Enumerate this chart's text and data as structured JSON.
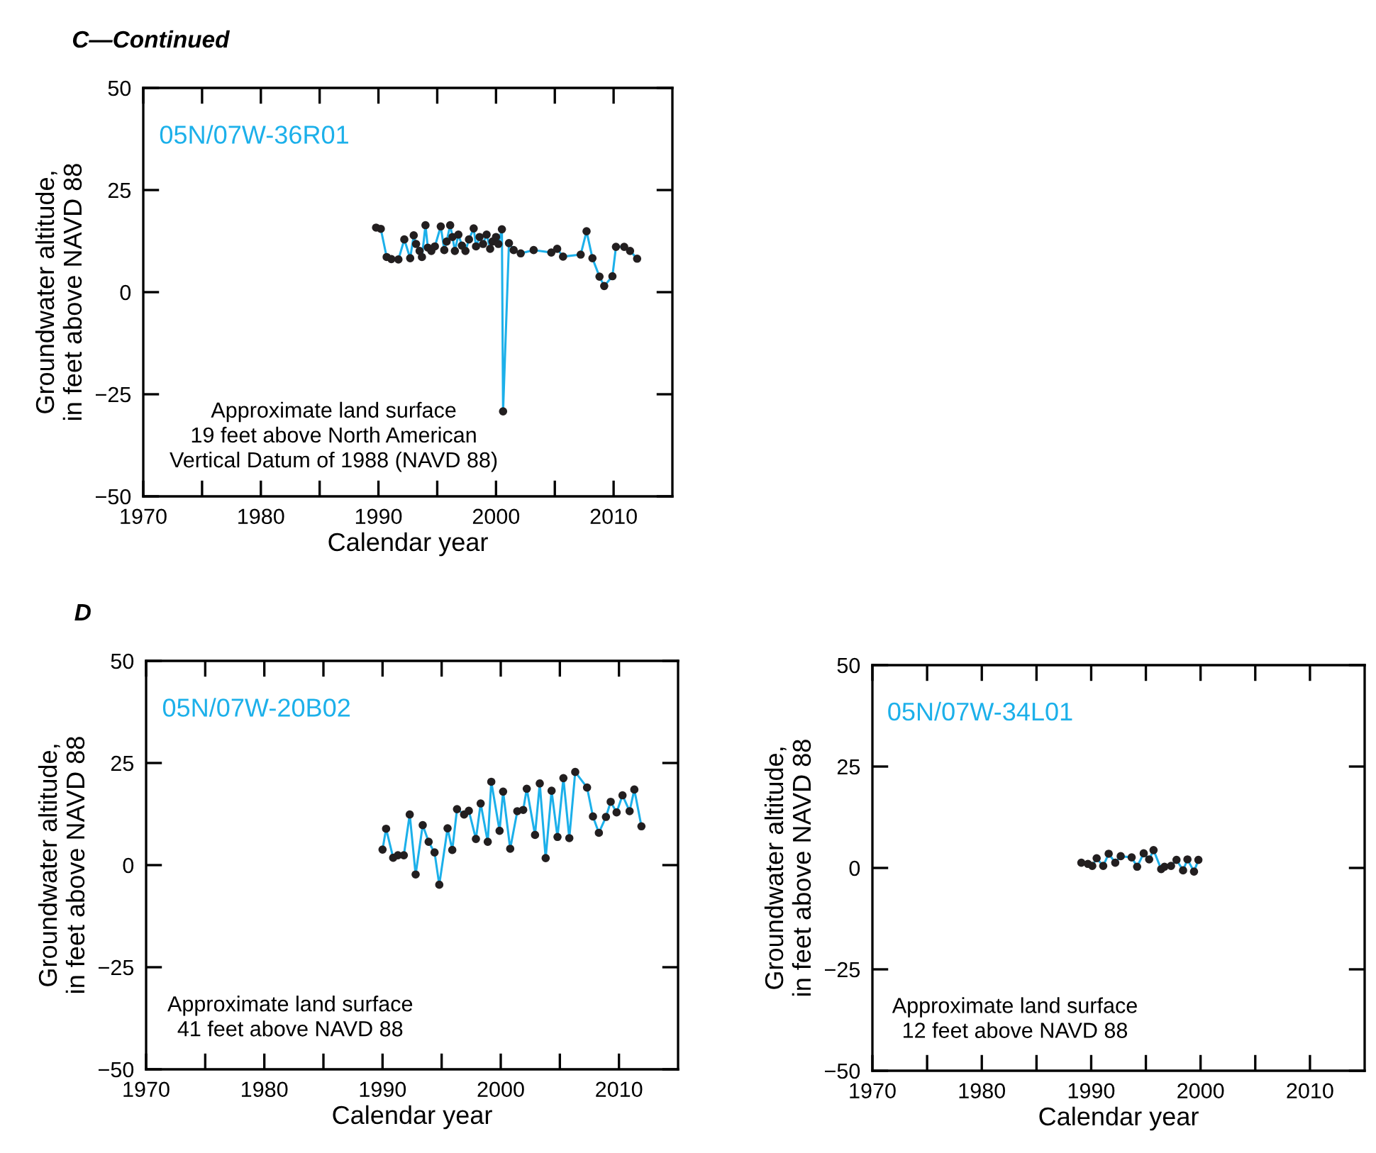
{
  "chart_data": [
    {
      "type": "line",
      "title": "C—Continued",
      "xlabel": "Calendar year",
      "ylabel": "Groundwater altitude,\nin feet above NAVD 88",
      "xlim": [
        1970,
        2015
      ],
      "xticks": [
        1970,
        {
          "value": 1975,
          "label": null
        },
        1980,
        {
          "value": 1985,
          "label": null
        },
        1990,
        {
          "value": 1995,
          "label": null
        },
        2000,
        {
          "value": 2005,
          "label": null
        },
        2010
      ],
      "ylim": [
        -50,
        50
      ],
      "yticks": [
        -50,
        -25,
        0,
        25,
        50
      ],
      "grid": false,
      "legend": false,
      "marker": "circle",
      "line_style": "solid",
      "annotations": [
        "Approximate land surface\n19 feet above North American\nVertical Datum of 1988 (NAVD 88)"
      ],
      "series": [
        {
          "name": "05N/07W-36R01",
          "color": "#1cb0ea",
          "x": [
            1989.8,
            1990.2,
            1990.7,
            1991.1,
            1991.7,
            1992.2,
            1992.7,
            1993.0,
            1993.2,
            1993.5,
            1993.7,
            1994.0,
            1994.2,
            1994.5,
            1994.8,
            1995.3,
            1995.6,
            1995.8,
            1996.1,
            1996.3,
            1996.5,
            1996.8,
            1997.1,
            1997.4,
            1997.7,
            1998.1,
            1998.3,
            1998.6,
            1998.9,
            1999.2,
            1999.5,
            1999.7,
            2000.0,
            2000.2,
            2000.5,
            2000.6,
            2001.1,
            2001.5,
            2002.1,
            2003.2,
            2004.7,
            2005.2,
            2005.7,
            2007.2,
            2007.7,
            2008.2,
            2008.8,
            2009.2,
            2009.9,
            2010.2,
            2010.9,
            2011.4,
            2012.0
          ],
          "values": [
            15.8,
            15.5,
            8.6,
            8.1,
            8.0,
            12.9,
            8.3,
            13.9,
            11.8,
            10.1,
            8.6,
            16.4,
            10.9,
            10.1,
            11.2,
            16.1,
            10.3,
            12.4,
            16.4,
            13.5,
            10.1,
            14.1,
            11.4,
            10.1,
            12.9,
            15.6,
            11.2,
            13.5,
            11.8,
            14.1,
            10.6,
            12.4,
            13.5,
            11.8,
            15.4,
            -29.2,
            12.0,
            10.3,
            9.5,
            10.3,
            9.7,
            10.6,
            8.7,
            9.2,
            14.9,
            8.3,
            3.8,
            1.5,
            3.9,
            11.1,
            11.1,
            10.1,
            8.2
          ]
        }
      ]
    },
    {
      "type": "line",
      "title": "D",
      "xlabel": "Calendar year",
      "ylabel": "Groundwater altitude,\nin feet above NAVD 88",
      "xlim": [
        1970,
        2015
      ],
      "xticks": [
        1970,
        {
          "value": 1975,
          "label": null
        },
        1980,
        {
          "value": 1985,
          "label": null
        },
        1990,
        {
          "value": 1995,
          "label": null
        },
        2000,
        {
          "value": 2005,
          "label": null
        },
        2010
      ],
      "ylim": [
        -50,
        50
      ],
      "yticks": [
        -50,
        -25,
        0,
        25,
        50
      ],
      "grid": false,
      "legend": false,
      "marker": "circle",
      "line_style": "solid",
      "annotations": [
        "Approximate land surface\n41 feet above NAVD 88"
      ],
      "series": [
        {
          "name": "05N/07W-20B02",
          "color": "#1cb0ea",
          "x": [
            1990.0,
            1990.3,
            1990.9,
            1991.3,
            1991.8,
            1992.3,
            1992.8,
            1993.4,
            1993.9,
            1994.4,
            1994.8,
            1995.5,
            1995.9,
            1996.3,
            1996.9,
            1997.3,
            1997.9,
            1998.3,
            1998.9,
            1999.2,
            1999.9,
            2000.2,
            2000.8,
            2001.4,
            2001.9,
            2002.2,
            2002.9,
            2003.3,
            2003.8,
            2004.3,
            2004.8,
            2005.3,
            2005.8,
            2006.3,
            2007.3,
            2007.8,
            2008.3,
            2008.9,
            2009.3,
            2009.8,
            2010.3,
            2010.9,
            2011.3,
            2011.9
          ],
          "values": [
            3.8,
            8.9,
            1.8,
            2.4,
            2.4,
            12.4,
            -2.3,
            9.8,
            5.7,
            3.1,
            -4.8,
            9.0,
            3.7,
            13.7,
            12.4,
            13.3,
            6.4,
            15.1,
            5.7,
            20.4,
            8.4,
            18.0,
            4.0,
            13.2,
            13.5,
            18.7,
            7.4,
            20.0,
            1.7,
            18.2,
            6.9,
            21.3,
            6.6,
            22.8,
            19.0,
            11.9,
            7.9,
            11.8,
            15.5,
            12.9,
            17.1,
            13.2,
            18.5,
            9.5
          ]
        }
      ]
    },
    {
      "type": "line",
      "xlabel": "Calendar year",
      "ylabel": "Groundwater altitude,\nin feet above NAVD 88",
      "xlim": [
        1970,
        2015
      ],
      "xticks": [
        1970,
        {
          "value": 1975,
          "label": null
        },
        1980,
        {
          "value": 1985,
          "label": null
        },
        1990,
        {
          "value": 1995,
          "label": null
        },
        2000,
        {
          "value": 2005,
          "label": null
        },
        2010
      ],
      "ylim": [
        -50,
        50
      ],
      "yticks": [
        -50,
        -25,
        0,
        25,
        50
      ],
      "grid": false,
      "legend": false,
      "marker": "circle",
      "line_style": "solid",
      "annotations": [
        "Approximate land surface\n12 feet above NAVD 88"
      ],
      "series": [
        {
          "name": "05N/07W-34L01",
          "color": "#1cb0ea",
          "x": [
            1989.1,
            1989.7,
            1990.1,
            1990.5,
            1991.1,
            1991.6,
            1992.2,
            1992.7,
            1993.7,
            1994.2,
            1994.8,
            1995.3,
            1995.7,
            1996.4,
            1996.7,
            1997.3,
            1997.8,
            1998.4,
            1998.8,
            1999.4,
            1999.8
          ],
          "values": [
            1.3,
            1.0,
            0.5,
            2.4,
            0.5,
            3.5,
            1.3,
            2.9,
            2.6,
            0.3,
            3.6,
            2.1,
            4.4,
            -0.3,
            0.3,
            0.5,
            2.0,
            -0.6,
            2.1,
            -0.9,
            2.0
          ]
        }
      ]
    }
  ]
}
